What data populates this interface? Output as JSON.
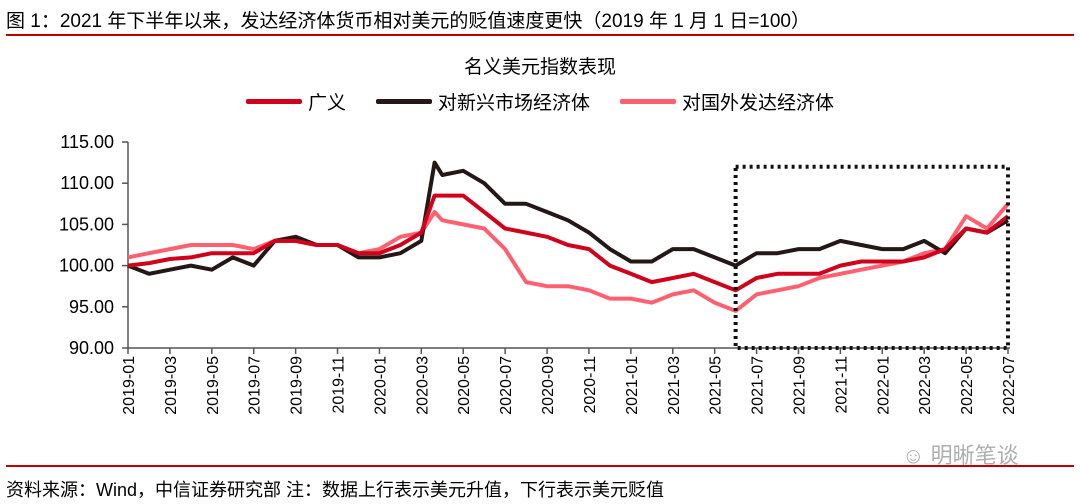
{
  "figure_title": "图 1：2021 年下半年以来，发达经济体货币相对美元的贬值速度更快（2019 年 1 月 1 日=100）",
  "source_note": "资料来源：Wind，中信证券研究部 注：数据上行表示美元升值，下行表示美元贬值",
  "watermark": "明晰笔谈",
  "colors": {
    "rule": "#c00000",
    "broad": "#d0021b",
    "emerging": "#231815",
    "developed": "#ff6070",
    "annotation_box": "#111111"
  },
  "chart_data": {
    "type": "line",
    "title": "名义美元指数表现",
    "xlabel": "",
    "ylabel": "",
    "ylim": [
      90,
      115
    ],
    "yticks": [
      "90.00",
      "95.00",
      "100.00",
      "105.00",
      "110.00",
      "115.00"
    ],
    "xticks": [
      "2019-01",
      "2019-03",
      "2019-05",
      "2019-07",
      "2019-09",
      "2019-11",
      "2020-01",
      "2020-03",
      "2020-05",
      "2020-07",
      "2020-09",
      "2020-11",
      "2021-01",
      "2021-03",
      "2021-05",
      "2021-07",
      "2021-09",
      "2021-11",
      "2022-01",
      "2022-03",
      "2022-05",
      "2022-07"
    ],
    "grid": false,
    "legend_position": "top",
    "x": [
      "2019-01",
      "2019-02",
      "2019-03",
      "2019-04",
      "2019-05",
      "2019-06",
      "2019-07",
      "2019-08",
      "2019-09",
      "2019-10",
      "2019-11",
      "2019-12",
      "2020-01",
      "2020-02",
      "2020-03",
      "2020-03-20",
      "2020-04",
      "2020-05",
      "2020-06",
      "2020-07",
      "2020-08",
      "2020-09",
      "2020-10",
      "2020-11",
      "2020-12",
      "2021-01",
      "2021-02",
      "2021-03",
      "2021-04",
      "2021-05",
      "2021-06",
      "2021-07",
      "2021-08",
      "2021-09",
      "2021-10",
      "2021-11",
      "2021-12",
      "2022-01",
      "2022-02",
      "2022-03",
      "2022-04",
      "2022-05",
      "2022-06",
      "2022-07"
    ],
    "series": [
      {
        "name": "广义",
        "color": "#d0021b",
        "values": [
          100,
          100.3,
          100.8,
          101,
          101.5,
          101.5,
          101.5,
          103,
          103,
          102.5,
          102.5,
          101.5,
          101.5,
          102.5,
          104,
          108.5,
          108.5,
          108.5,
          106.5,
          104.5,
          104,
          103.5,
          102.5,
          102,
          100,
          99,
          98,
          98.5,
          99,
          98,
          97,
          98.5,
          99,
          99,
          99,
          100,
          100.5,
          100.5,
          100.5,
          101,
          102,
          104.5,
          104,
          106
        ]
      },
      {
        "name": "对新兴市场经济体",
        "color": "#231815",
        "values": [
          100,
          99,
          99.5,
          100,
          99.5,
          101,
          100,
          103,
          103.5,
          102.5,
          102.5,
          101,
          101,
          101.5,
          103,
          112.5,
          111,
          111.5,
          110,
          107.5,
          107.5,
          106.5,
          105.5,
          104,
          102,
          100.5,
          100.5,
          102,
          102,
          101,
          100,
          101.5,
          101.5,
          102,
          102,
          103,
          102.5,
          102,
          102,
          103,
          101.5,
          104.5,
          104,
          105.5
        ]
      },
      {
        "name": "对国外发达经济体",
        "color": "#ff6070",
        "values": [
          101,
          101.5,
          102,
          102.5,
          102.5,
          102.5,
          102,
          103,
          103,
          102.5,
          102.5,
          101.5,
          102,
          103.5,
          104,
          106.5,
          105.5,
          105,
          104.5,
          102,
          98,
          97.5,
          97.5,
          97,
          96,
          96,
          95.5,
          96.5,
          97,
          95.5,
          94.5,
          96.5,
          97,
          97.5,
          98.5,
          99,
          99.5,
          100,
          100.5,
          101.5,
          102,
          106,
          104.5,
          107.5
        ]
      }
    ],
    "annotation_box": {
      "x_range": [
        "2021-06",
        "2022-07"
      ],
      "y_range": [
        90,
        112
      ]
    }
  }
}
